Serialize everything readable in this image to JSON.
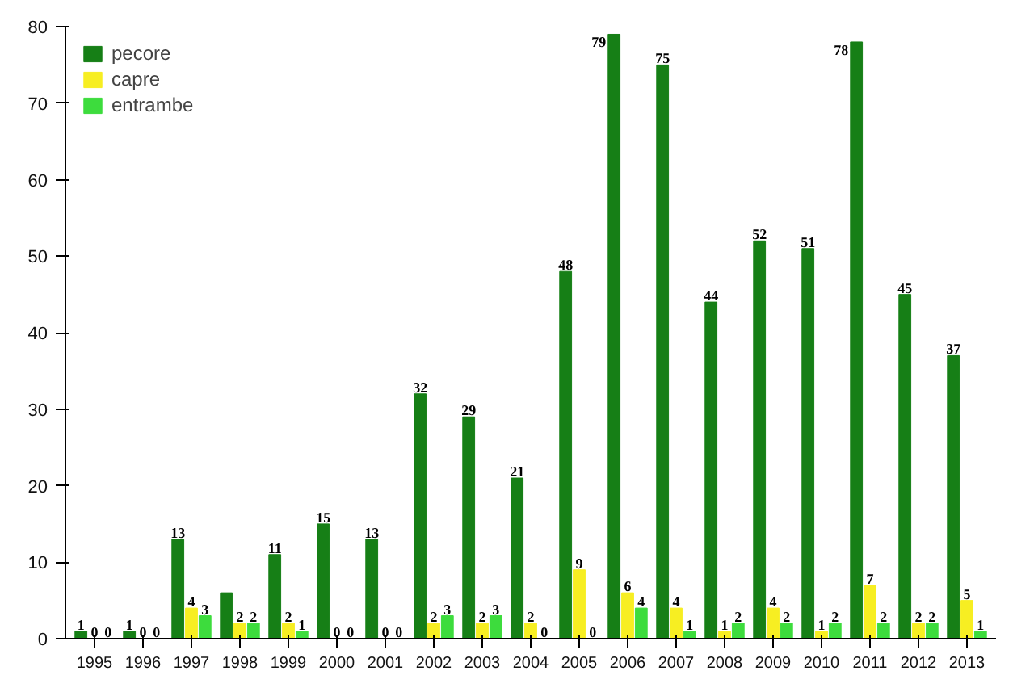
{
  "chart_data": {
    "type": "bar",
    "categories": [
      "1995",
      "1996",
      "1997",
      "1998",
      "1999",
      "2000",
      "2001",
      "2002",
      "2003",
      "2004",
      "2005",
      "2006",
      "2007",
      "2008",
      "2009",
      "2010",
      "2011",
      "2012",
      "2013"
    ],
    "ylim": [
      0,
      80
    ],
    "yticks": [
      0,
      10,
      20,
      30,
      40,
      50,
      60,
      70,
      80
    ],
    "legend": "top left",
    "series": [
      {
        "name": "pecore",
        "color": "#167f16",
        "values": [
          1,
          1,
          13,
          6,
          11,
          15,
          13,
          32,
          29,
          21,
          48,
          79,
          75,
          44,
          52,
          51,
          78,
          45,
          37
        ],
        "value_labels": [
          "1",
          "1",
          "13",
          null,
          "11",
          "15",
          "13",
          "32",
          "29",
          "21",
          "48",
          "79",
          "75",
          "44",
          "52",
          "51",
          "78",
          "45",
          "37"
        ]
      },
      {
        "name": "capre",
        "color": "#f7ee22",
        "values": [
          0,
          0,
          4,
          2,
          2,
          0,
          0,
          2,
          2,
          2,
          9,
          6,
          4,
          1,
          4,
          1,
          7,
          2,
          5
        ],
        "value_labels": [
          "0",
          "0",
          "4",
          "2",
          "2",
          "0",
          "0",
          "2",
          "2",
          "2",
          "9",
          "6",
          "4",
          "1",
          "4",
          "1",
          "7",
          "2",
          "5"
        ]
      },
      {
        "name": "entrambe",
        "color": "#3ddc3d",
        "values": [
          0,
          0,
          3,
          2,
          1,
          0,
          0,
          3,
          3,
          0,
          0,
          4,
          1,
          2,
          2,
          2,
          2,
          2,
          1
        ],
        "value_labels": [
          "0",
          "0",
          "3",
          "2",
          "1",
          "0",
          "0",
          "3",
          "3",
          "0",
          "0",
          "4",
          "1",
          "2",
          "2",
          "2",
          "2",
          "2",
          "1"
        ]
      }
    ]
  }
}
